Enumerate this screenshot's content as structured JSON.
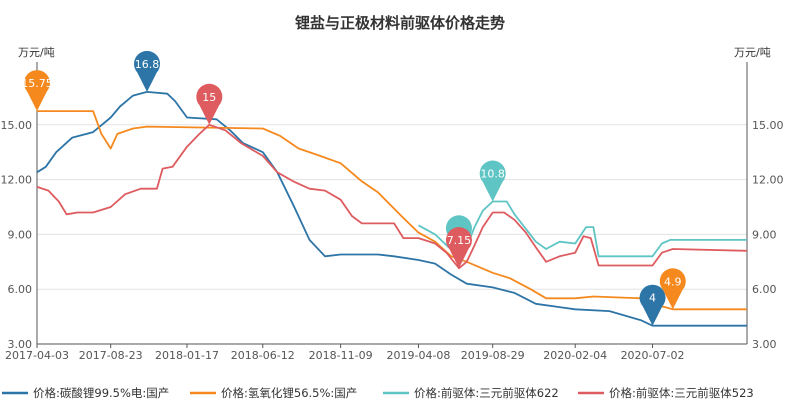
{
  "chart_data": {
    "type": "line",
    "title": "锂盐与正极材料前驱体价格走势",
    "ylabel_left": "万元/吨",
    "ylabel_right": "万元/吨",
    "ylim": [
      3.0,
      18.0
    ],
    "yticks": [
      "3.00",
      "6.00",
      "9.00",
      "12.00",
      "15.00"
    ],
    "xlim": [
      "2017-04-03",
      "2020-12-31"
    ],
    "xticks": [
      "2017-04-03",
      "2017-08-23",
      "2018-01-17",
      "2018-06-12",
      "2018-11-09",
      "2019-04-08",
      "2019-08-29",
      "2020-02-04",
      "2020-07-02"
    ],
    "grid": "horizontal",
    "legend_position": "bottom",
    "series": [
      {
        "name": "价格:碳酸锂99.5%电:国产",
        "color": "#2e75a7",
        "points": [
          [
            "2017-04-03",
            12.4
          ],
          [
            "2017-04-20",
            12.7
          ],
          [
            "2017-05-10",
            13.5
          ],
          [
            "2017-06-10",
            14.3
          ],
          [
            "2017-07-20",
            14.6
          ],
          [
            "2017-08-23",
            15.4
          ],
          [
            "2017-09-10",
            16.0
          ],
          [
            "2017-10-05",
            16.6
          ],
          [
            "2017-11-01",
            16.8
          ],
          [
            "2017-12-10",
            16.7
          ],
          [
            "2017-12-25",
            16.3
          ],
          [
            "2018-01-17",
            15.4
          ],
          [
            "2018-03-15",
            15.3
          ],
          [
            "2018-04-10",
            14.7
          ],
          [
            "2018-05-05",
            14.0
          ],
          [
            "2018-06-12",
            13.5
          ],
          [
            "2018-07-10",
            12.4
          ],
          [
            "2018-08-10",
            10.6
          ],
          [
            "2018-09-10",
            8.7
          ],
          [
            "2018-10-10",
            7.8
          ],
          [
            "2018-11-09",
            7.9
          ],
          [
            "2019-01-20",
            7.9
          ],
          [
            "2019-02-20",
            7.8
          ],
          [
            "2019-04-08",
            7.6
          ],
          [
            "2019-05-10",
            7.4
          ],
          [
            "2019-06-10",
            6.8
          ],
          [
            "2019-07-10",
            6.3
          ],
          [
            "2019-08-29",
            6.1
          ],
          [
            "2019-10-10",
            5.8
          ],
          [
            "2019-11-20",
            5.2
          ],
          [
            "2020-01-10",
            5.0
          ],
          [
            "2020-02-04",
            4.9
          ],
          [
            "2020-04-10",
            4.8
          ],
          [
            "2020-06-10",
            4.3
          ],
          [
            "2020-07-02",
            4.0
          ],
          [
            "2020-09-10",
            4.0
          ],
          [
            "2020-12-31",
            4.0
          ]
        ]
      },
      {
        "name": "价格:氢氧化锂56.5%:国产",
        "color": "#f5891e",
        "points": [
          [
            "2017-04-03",
            15.75
          ],
          [
            "2017-07-20",
            15.75
          ],
          [
            "2017-08-05",
            14.5
          ],
          [
            "2017-08-23",
            13.7
          ],
          [
            "2017-09-05",
            14.5
          ],
          [
            "2017-10-05",
            14.8
          ],
          [
            "2017-11-01",
            14.9
          ],
          [
            "2018-06-12",
            14.8
          ],
          [
            "2018-07-15",
            14.4
          ],
          [
            "2018-08-20",
            13.7
          ],
          [
            "2018-09-20",
            13.4
          ],
          [
            "2018-11-09",
            12.9
          ],
          [
            "2018-12-20",
            11.9
          ],
          [
            "2019-01-20",
            11.3
          ],
          [
            "2019-03-10",
            9.9
          ],
          [
            "2019-04-08",
            9.1
          ],
          [
            "2019-05-10",
            8.6
          ],
          [
            "2019-06-10",
            7.8
          ],
          [
            "2019-07-10",
            7.5
          ],
          [
            "2019-08-29",
            6.9
          ],
          [
            "2019-10-01",
            6.6
          ],
          [
            "2019-11-10",
            6.0
          ],
          [
            "2019-12-10",
            5.5
          ],
          [
            "2020-02-04",
            5.5
          ],
          [
            "2020-03-10",
            5.6
          ],
          [
            "2020-06-10",
            5.5
          ],
          [
            "2020-07-02",
            5.2
          ],
          [
            "2020-08-10",
            4.9
          ],
          [
            "2020-12-31",
            4.9
          ]
        ]
      },
      {
        "name": "价格:前驱体:三元前驱体622",
        "color": "#5ec4c4",
        "points": [
          [
            "2019-04-08",
            9.5
          ],
          [
            "2019-05-10",
            9.0
          ],
          [
            "2019-06-05",
            8.3
          ],
          [
            "2019-06-25",
            7.8
          ],
          [
            "2019-07-10",
            8.3
          ],
          [
            "2019-07-25",
            9.4
          ],
          [
            "2019-08-10",
            10.3
          ],
          [
            "2019-08-29",
            10.8
          ],
          [
            "2019-09-25",
            10.8
          ],
          [
            "2019-10-10",
            10.1
          ],
          [
            "2019-11-01",
            9.3
          ],
          [
            "2019-11-20",
            8.6
          ],
          [
            "2019-12-10",
            8.2
          ],
          [
            "2020-01-05",
            8.6
          ],
          [
            "2020-02-04",
            8.5
          ],
          [
            "2020-02-25",
            9.4
          ],
          [
            "2020-03-10",
            9.4
          ],
          [
            "2020-03-20",
            7.8
          ],
          [
            "2020-07-02",
            7.8
          ],
          [
            "2020-07-20",
            8.5
          ],
          [
            "2020-08-05",
            8.7
          ],
          [
            "2020-12-31",
            8.7
          ]
        ]
      },
      {
        "name": "价格:前驱体:三元前驱体523",
        "color": "#de5b5f",
        "points": [
          [
            "2017-04-03",
            11.6
          ],
          [
            "2017-04-25",
            11.4
          ],
          [
            "2017-05-15",
            10.8
          ],
          [
            "2017-05-30",
            10.1
          ],
          [
            "2017-06-20",
            10.2
          ],
          [
            "2017-07-20",
            10.2
          ],
          [
            "2017-08-23",
            10.5
          ],
          [
            "2017-09-20",
            11.2
          ],
          [
            "2017-10-20",
            11.5
          ],
          [
            "2017-11-20",
            11.5
          ],
          [
            "2017-12-01",
            12.6
          ],
          [
            "2017-12-20",
            12.7
          ],
          [
            "2018-01-17",
            13.8
          ],
          [
            "2018-02-10",
            14.5
          ],
          [
            "2018-03-01",
            15.0
          ],
          [
            "2018-04-01",
            14.7
          ],
          [
            "2018-05-01",
            14.0
          ],
          [
            "2018-06-12",
            13.3
          ],
          [
            "2018-07-10",
            12.4
          ],
          [
            "2018-08-10",
            11.9
          ],
          [
            "2018-09-10",
            11.5
          ],
          [
            "2018-10-10",
            11.4
          ],
          [
            "2018-11-09",
            10.9
          ],
          [
            "2018-12-01",
            10.0
          ],
          [
            "2018-12-20",
            9.6
          ],
          [
            "2019-02-20",
            9.6
          ],
          [
            "2019-03-10",
            8.8
          ],
          [
            "2019-04-08",
            8.8
          ],
          [
            "2019-05-10",
            8.5
          ],
          [
            "2019-06-01",
            8.0
          ],
          [
            "2019-06-25",
            7.15
          ],
          [
            "2019-07-10",
            7.5
          ],
          [
            "2019-07-25",
            8.4
          ],
          [
            "2019-08-10",
            9.4
          ],
          [
            "2019-08-29",
            10.2
          ],
          [
            "2019-09-20",
            10.2
          ],
          [
            "2019-10-10",
            9.8
          ],
          [
            "2019-11-01",
            9.1
          ],
          [
            "2019-11-20",
            8.3
          ],
          [
            "2019-12-10",
            7.5
          ],
          [
            "2020-01-05",
            7.8
          ],
          [
            "2020-02-04",
            8.0
          ],
          [
            "2020-02-20",
            8.9
          ],
          [
            "2020-03-05",
            8.8
          ],
          [
            "2020-03-20",
            7.3
          ],
          [
            "2020-07-02",
            7.3
          ],
          [
            "2020-07-20",
            8.0
          ],
          [
            "2020-08-10",
            8.2
          ],
          [
            "2020-12-31",
            8.1
          ]
        ]
      }
    ],
    "annotations": [
      {
        "label": "15.75",
        "series": 1,
        "x": "2017-04-03",
        "y": 15.75,
        "color": "#f5891e"
      },
      {
        "label": "16.8",
        "series": 0,
        "x": "2017-11-01",
        "y": 16.8,
        "color": "#2e75a7"
      },
      {
        "label": "15",
        "series": 3,
        "x": "2018-03-01",
        "y": 15.0,
        "color": "#de5b5f"
      },
      {
        "label": "",
        "series": 2,
        "x": "2019-06-25",
        "y": 7.8,
        "color": "#5ec4c4"
      },
      {
        "label": "7.15",
        "series": 3,
        "x": "2019-06-25",
        "y": 7.15,
        "color": "#de5b5f"
      },
      {
        "label": "10.8",
        "series": 2,
        "x": "2019-08-29",
        "y": 10.8,
        "color": "#5ec4c4"
      },
      {
        "label": "4",
        "series": 0,
        "x": "2020-07-02",
        "y": 4.0,
        "color": "#2e75a7"
      },
      {
        "label": "4.9",
        "series": 1,
        "x": "2020-08-10",
        "y": 4.9,
        "color": "#f5891e"
      }
    ]
  }
}
